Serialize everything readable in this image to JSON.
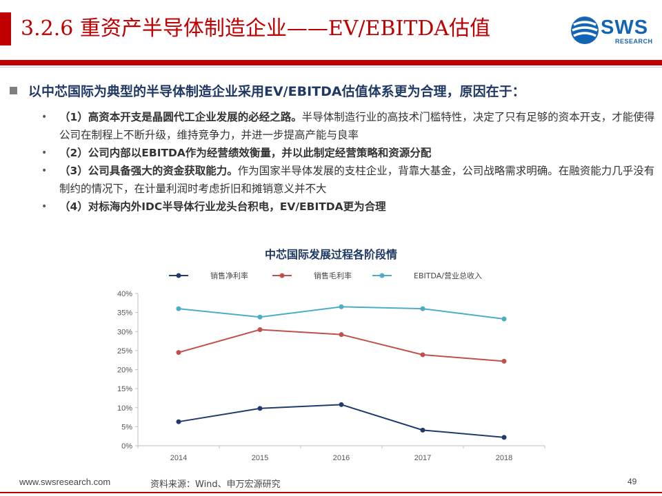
{
  "header": {
    "title": "3.2.6 重资产半导体制造企业——EV/EBITDA估值",
    "logo_text": "SWS",
    "logo_sub": "RESEARCH",
    "accent_color": "#c00000",
    "logo_color": "#1464b4"
  },
  "main_point": "以中芯国际为典型的半导体制造企业采用EV/EBITDA估值体系更为合理，原因在于：",
  "points": [
    {
      "bold": "（1）高资本开支是晶圆代工企业发展的必经之路。",
      "text": "半导体制造行业的高技术门槛特性，决定了只有足够的资本开支，才能使得公司在制程上不断升级，维持竞争力，并进一步提高产能与良率"
    },
    {
      "bold": "（2）公司内部以EBITDA作为经营绩效衡量，并以此制定经营策略和资源分配",
      "text": ""
    },
    {
      "bold": "（3）公司具备强大的资金获取能力。",
      "text": "作为国家半导体发展的支柱企业，背靠大基金，公司战略需求明确。在融资能力几乎没有制约的情况下，在计量利润时考虑折旧和摊销意义并不大"
    },
    {
      "bold": "（4）对标海内外IDC半导体行业龙头台积电，EV/EBITDA更为合理",
      "text": ""
    }
  ],
  "chart_data": {
    "type": "line",
    "title": "中芯国际发展过程各阶段情",
    "x": [
      "2014",
      "2015",
      "2016",
      "2017",
      "2018"
    ],
    "y_ticks": [
      "0%",
      "5%",
      "10%",
      "15%",
      "20%",
      "25%",
      "30%",
      "35%",
      "40%"
    ],
    "ylim": [
      0,
      40
    ],
    "legend_position": "top",
    "grid": false,
    "series": [
      {
        "name": "销售净利率",
        "color": "#1f3a6b",
        "values": [
          6.3,
          9.8,
          10.8,
          4.1,
          2.2
        ]
      },
      {
        "name": "销售毛利率",
        "color": "#c0504d",
        "values": [
          24.5,
          30.5,
          29.2,
          23.9,
          22.2
        ]
      },
      {
        "name": "EBITDA/营业总收入",
        "color": "#4bacc6",
        "values": [
          36.0,
          33.8,
          36.5,
          36.0,
          33.3
        ]
      }
    ]
  },
  "footer": {
    "website": "www.swsresearch.com",
    "source": "资料来源：Wind、申万宏源研究",
    "page": "49"
  }
}
